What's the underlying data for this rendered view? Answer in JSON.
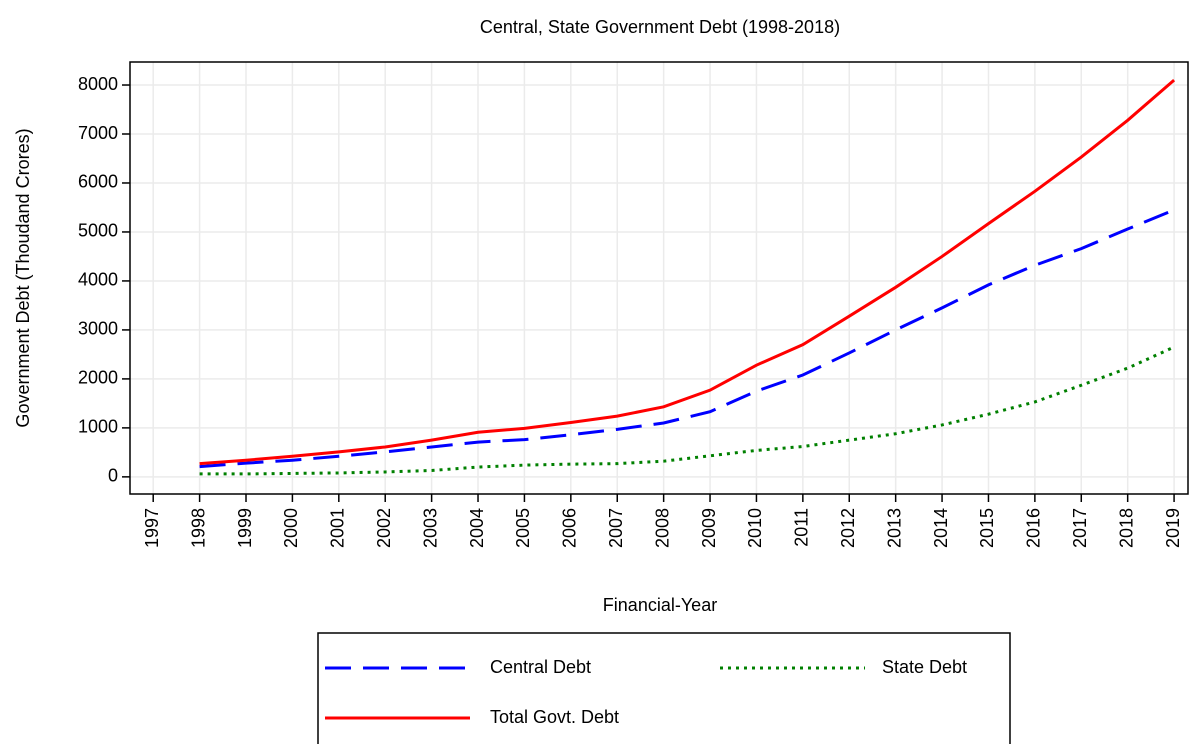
{
  "chart_data": {
    "type": "line",
    "title": "Central, State Government Debt (1998-2018)",
    "x_label": "Financial-Year",
    "y_label": "Government Debt (Thoudand Crores)",
    "x": [
      1998,
      1999,
      2000,
      2001,
      2002,
      2003,
      2004,
      2005,
      2006,
      2007,
      2008,
      2009,
      2010,
      2011,
      2012,
      2013,
      2014,
      2015,
      2016,
      2017,
      2018,
      2019
    ],
    "series": [
      {
        "name": "Central Debt",
        "color": "#0000ff",
        "line_style": "dashed",
        "values": [
          210,
          280,
          340,
          420,
          510,
          610,
          710,
          760,
          860,
          970,
          1100,
          1330,
          1750,
          2080,
          2530,
          3000,
          3450,
          3920,
          4320,
          4660,
          5060,
          5450
        ]
      },
      {
        "name": "State Debt",
        "color": "#008000",
        "line_style": "dotted",
        "values": [
          60,
          60,
          70,
          80,
          100,
          130,
          200,
          240,
          260,
          270,
          320,
          430,
          540,
          620,
          750,
          880,
          1060,
          1280,
          1530,
          1870,
          2220,
          2650
        ]
      },
      {
        "name": "Total Govt. Debt",
        "color": "#ff0000",
        "line_style": "solid",
        "values": [
          270,
          340,
          420,
          510,
          610,
          750,
          910,
          990,
          1110,
          1240,
          1430,
          1770,
          2280,
          2700,
          3280,
          3870,
          4500,
          5170,
          5830,
          6530,
          7280,
          8100
        ]
      }
    ],
    "xlim": [
      1996.5,
      2019.3
    ],
    "xticks": [
      1997,
      1998,
      1999,
      2000,
      2001,
      2002,
      2003,
      2004,
      2005,
      2006,
      2007,
      2008,
      2009,
      2010,
      2011,
      2012,
      2013,
      2014,
      2015,
      2016,
      2017,
      2018,
      2019
    ],
    "ylim": [
      -350,
      8470
    ],
    "yticks": [
      0,
      1000,
      2000,
      3000,
      4000,
      5000,
      6000,
      7000,
      8000
    ],
    "grid": true
  }
}
